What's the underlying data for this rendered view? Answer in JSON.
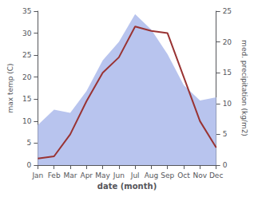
{
  "chart_data": {
    "type": "line",
    "xlabel": "date (month)",
    "ylabel": "max temp (C)",
    "y2label": "med. precipitation (kg/m2)",
    "categories": [
      "Jan",
      "Feb",
      "Mar",
      "Apr",
      "May",
      "Jun",
      "Jul",
      "Aug",
      "Sep",
      "Oct",
      "Nov",
      "Dec"
    ],
    "series": [
      {
        "type": "area",
        "axis": "y2",
        "color": "#b8c4ee",
        "values": [
          6.5,
          9.0,
          8.5,
          12.0,
          17.0,
          20.0,
          24.5,
          22.0,
          18.0,
          13.0,
          10.5,
          11.0
        ]
      },
      {
        "type": "line",
        "color": "#993333",
        "values": [
          1.5,
          2.0,
          7.0,
          14.5,
          21.0,
          24.5,
          31.5,
          30.5,
          30.0,
          20.0,
          10.0,
          4.0
        ]
      }
    ],
    "ylim": [
      0,
      35
    ],
    "yticks": [
      0,
      5,
      10,
      15,
      20,
      25,
      30,
      35
    ],
    "y2lim": [
      0,
      25
    ],
    "y2ticks": [
      0,
      5,
      10,
      15,
      20,
      25
    ],
    "grid": false
  }
}
